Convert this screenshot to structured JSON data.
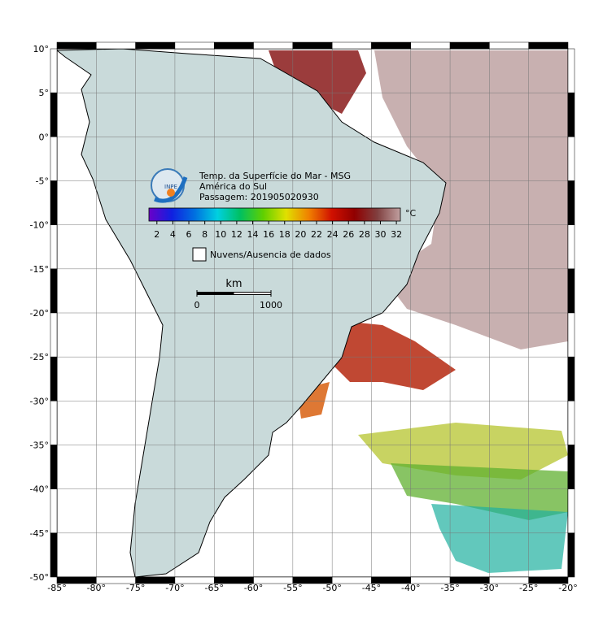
{
  "title_lines": [
    "Temp. da Superfície do Mar - MSG",
    "América do Sul",
    "Passagem: 201905020930"
  ],
  "logo_text": "INPE",
  "colorbar": {
    "unit": "°C",
    "range": [
      1,
      32.5
    ],
    "ticks": [
      2,
      4,
      6,
      8,
      10,
      12,
      14,
      16,
      18,
      20,
      22,
      24,
      26,
      28,
      30,
      32
    ],
    "colors": [
      "#6a00c8",
      "#1020e0",
      "#0070e0",
      "#00d0e0",
      "#00c060",
      "#60d000",
      "#e0e000",
      "#f08000",
      "#d01000",
      "#900000",
      "#804040",
      "#c0a0a0"
    ]
  },
  "legend": "Nuvens/Ausencia de dados",
  "scale": {
    "unit": "km",
    "ticks": [
      0,
      1000
    ]
  },
  "map": {
    "lonlim": [
      -85,
      -20
    ],
    "latlim": [
      10,
      -50
    ],
    "lon_ticks": [
      {
        "value": -85,
        "label": "-85°"
      },
      {
        "value": -80,
        "label": "-80°"
      },
      {
        "value": -75,
        "label": "-75°"
      },
      {
        "value": -70,
        "label": "-70°"
      },
      {
        "value": -65,
        "label": "-65°"
      },
      {
        "value": -60,
        "label": "-60°"
      },
      {
        "value": -55,
        "label": "-55°"
      },
      {
        "value": -50,
        "label": "-50°"
      },
      {
        "value": -45,
        "label": "-45°"
      },
      {
        "value": -40,
        "label": "-40°"
      },
      {
        "value": -35,
        "label": "-35°"
      },
      {
        "value": -30,
        "label": "-30°"
      },
      {
        "value": -25,
        "label": "-25°"
      },
      {
        "value": -20,
        "label": "-20°"
      }
    ],
    "lat_ticks": [
      {
        "value": 10,
        "label": "10°"
      },
      {
        "value": 5,
        "label": "5°"
      },
      {
        "value": 0,
        "label": "0°"
      },
      {
        "value": -5,
        "label": "-5°"
      },
      {
        "value": -10,
        "label": "-10°"
      },
      {
        "value": -15,
        "label": "-15°"
      },
      {
        "value": -20,
        "label": "-20°"
      },
      {
        "value": -25,
        "label": "-25°"
      },
      {
        "value": -30,
        "label": "-30°"
      },
      {
        "value": -35,
        "label": "-35°"
      },
      {
        "value": -40,
        "label": "-40°"
      },
      {
        "value": -45,
        "label": "-45°"
      },
      {
        "value": -50,
        "label": "-50°"
      }
    ]
  }
}
